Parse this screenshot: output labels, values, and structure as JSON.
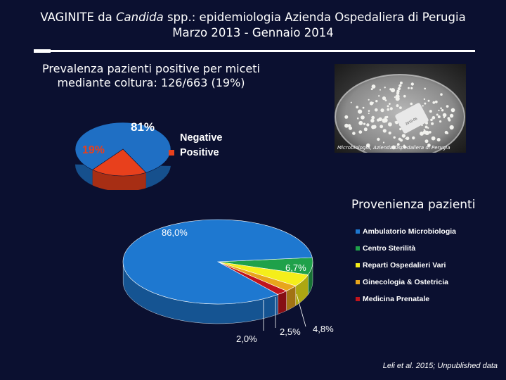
{
  "title": {
    "part1": "VAGINITE da ",
    "part2": "Candida",
    "part3": " spp.: epidemiologia Azienda Ospedaliera di Perugia",
    "line2": "Marzo 2013 - Gennaio 2014"
  },
  "subtitle": {
    "line1": "Prevalenza pazienti positive per miceti",
    "line2": "mediante coltura: 126/663 (19%)"
  },
  "photo_caption": "Microbiologia, Azienda Ospedaliera di Perugia",
  "footer": "Leli et al. 2015; Unpublished data",
  "chart_data": [
    {
      "type": "pie",
      "title": "",
      "categories": [
        "Negative",
        "Positive"
      ],
      "values": [
        81,
        19
      ],
      "data_labels": [
        "81%",
        "19%"
      ],
      "colors": [
        "#1f6fc4",
        "#e8401c"
      ],
      "legend_placement": "right"
    },
    {
      "type": "pie",
      "title": "Provenienza pazienti",
      "categories": [
        "Ambulatorio Microbiologia",
        "Centro Sterilità",
        "Reparti Ospedalieri Vari",
        "Ginecologia & Ostetricia",
        "Medicina Prenatale"
      ],
      "values": [
        86.0,
        6.7,
        4.8,
        2.5,
        2.0
      ],
      "data_labels": [
        "86,0%",
        "6,7%",
        "4,8%",
        "2,5%",
        "2,0%"
      ],
      "colors": [
        "#1e78d0",
        "#1fa14a",
        "#f5ee1a",
        "#e8a51c",
        "#c0141c"
      ],
      "legend_placement": "right"
    }
  ]
}
